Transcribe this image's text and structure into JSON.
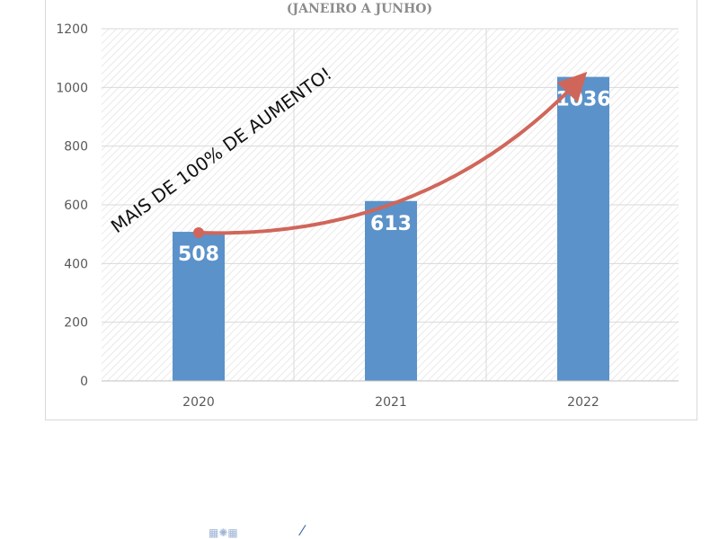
{
  "chart_data": {
    "type": "bar",
    "subtitle": "(JANEIRO A JUNHO)",
    "categories": [
      "2020",
      "2021",
      "2022"
    ],
    "values": [
      508,
      613,
      1036
    ],
    "data_labels": [
      "508",
      "613",
      "1036"
    ],
    "ylim": [
      0,
      1200
    ],
    "yticks": [
      0,
      200,
      400,
      600,
      800,
      1000,
      1200
    ],
    "grid": true,
    "bar_color": "#5b92c9",
    "arrow_color": "#d0665a",
    "annotation": "MAIS DE 100% DE AUMENTO!"
  }
}
